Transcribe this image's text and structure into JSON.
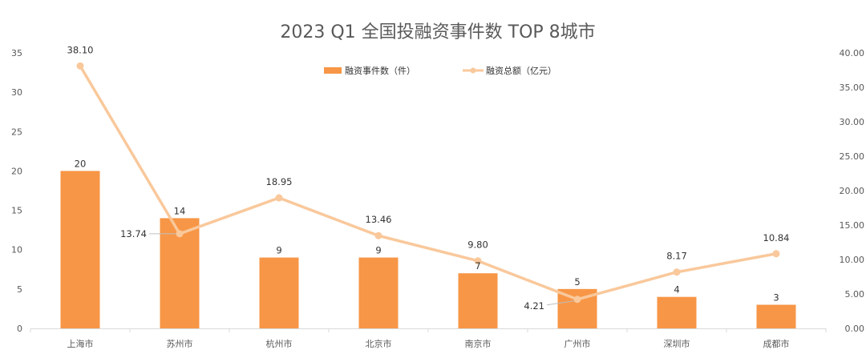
{
  "chart_data": {
    "type": "bar+line",
    "title": "2023 Q1 全国投融资事件数 TOP 8城市",
    "categories": [
      "上海市",
      "苏州市",
      "杭州市",
      "北京市",
      "南京市",
      "广州市",
      "深圳市",
      "成都市"
    ],
    "series": [
      {
        "name": "融资事件数（件）",
        "type": "bar",
        "axis": "left",
        "values": [
          20,
          14,
          9,
          9,
          7,
          5,
          4,
          3
        ],
        "labels": [
          "20",
          "14",
          "9",
          "9",
          "7",
          "5",
          "4",
          "3"
        ],
        "color": "#f79646"
      },
      {
        "name": "融资总额（亿元）",
        "type": "line",
        "axis": "right",
        "values": [
          38.1,
          13.74,
          18.95,
          13.46,
          9.8,
          4.21,
          8.17,
          10.84
        ],
        "labels": [
          "38.10",
          "13.74",
          "18.95",
          "13.46",
          "9.80",
          "4.21",
          "8.17",
          "10.84"
        ],
        "color": "#f9c89b"
      }
    ],
    "y_left": {
      "min": 0,
      "max": 35,
      "ticks": [
        "0",
        "5",
        "10",
        "15",
        "20",
        "25",
        "30",
        "35"
      ]
    },
    "y_right": {
      "min": 0,
      "max": 40,
      "ticks": [
        "0.00",
        "5.00",
        "10.00",
        "15.00",
        "20.00",
        "25.00",
        "30.00",
        "35.00",
        "40.00"
      ]
    },
    "legend_position": "top-right",
    "grid": false
  }
}
